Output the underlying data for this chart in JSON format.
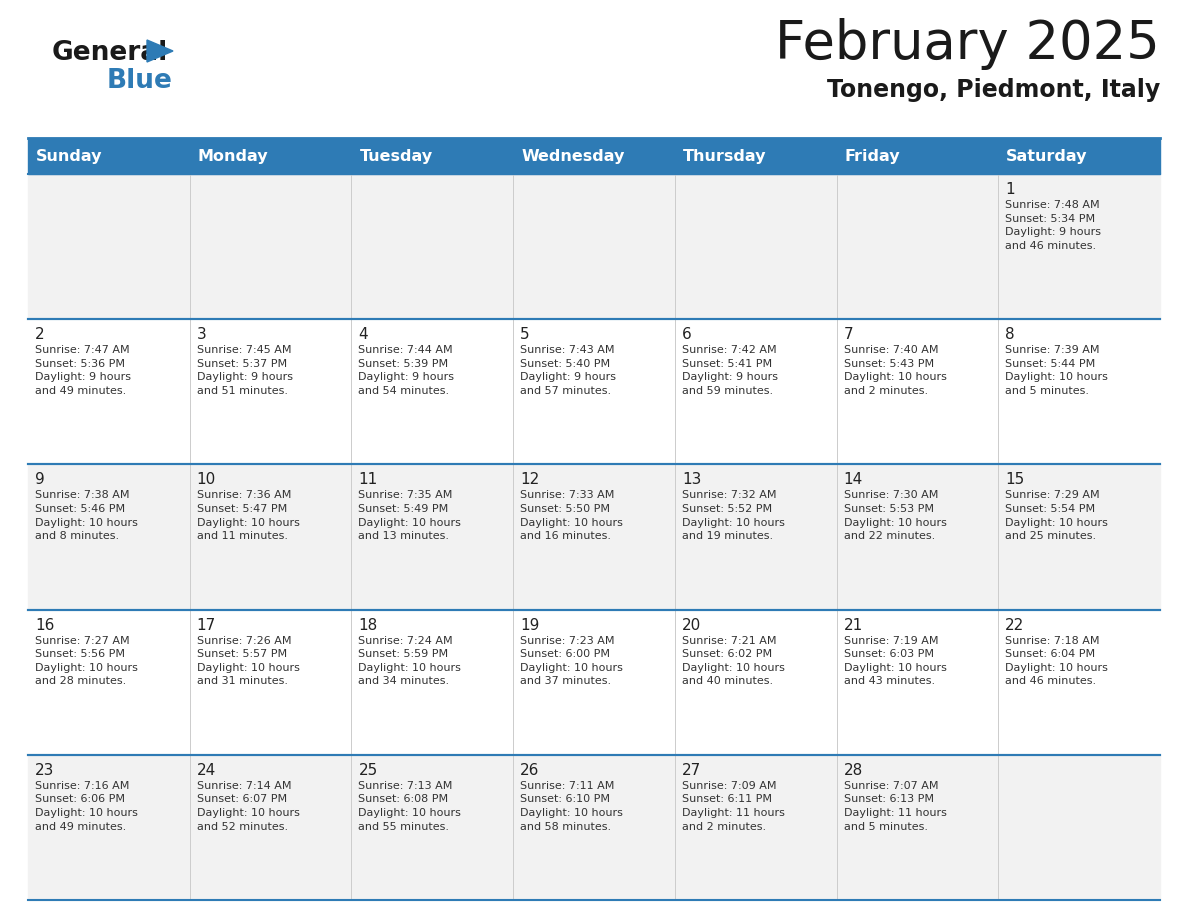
{
  "title": "February 2025",
  "subtitle": "Tonengo, Piedmont, Italy",
  "header_bg": "#2E7BB5",
  "header_text": "#FFFFFF",
  "divider_color": "#2E7BB5",
  "days_of_week": [
    "Sunday",
    "Monday",
    "Tuesday",
    "Wednesday",
    "Thursday",
    "Friday",
    "Saturday"
  ],
  "calendar_data": [
    [
      {
        "day": "",
        "info": ""
      },
      {
        "day": "",
        "info": ""
      },
      {
        "day": "",
        "info": ""
      },
      {
        "day": "",
        "info": ""
      },
      {
        "day": "",
        "info": ""
      },
      {
        "day": "",
        "info": ""
      },
      {
        "day": "1",
        "info": "Sunrise: 7:48 AM\nSunset: 5:34 PM\nDaylight: 9 hours\nand 46 minutes."
      }
    ],
    [
      {
        "day": "2",
        "info": "Sunrise: 7:47 AM\nSunset: 5:36 PM\nDaylight: 9 hours\nand 49 minutes."
      },
      {
        "day": "3",
        "info": "Sunrise: 7:45 AM\nSunset: 5:37 PM\nDaylight: 9 hours\nand 51 minutes."
      },
      {
        "day": "4",
        "info": "Sunrise: 7:44 AM\nSunset: 5:39 PM\nDaylight: 9 hours\nand 54 minutes."
      },
      {
        "day": "5",
        "info": "Sunrise: 7:43 AM\nSunset: 5:40 PM\nDaylight: 9 hours\nand 57 minutes."
      },
      {
        "day": "6",
        "info": "Sunrise: 7:42 AM\nSunset: 5:41 PM\nDaylight: 9 hours\nand 59 minutes."
      },
      {
        "day": "7",
        "info": "Sunrise: 7:40 AM\nSunset: 5:43 PM\nDaylight: 10 hours\nand 2 minutes."
      },
      {
        "day": "8",
        "info": "Sunrise: 7:39 AM\nSunset: 5:44 PM\nDaylight: 10 hours\nand 5 minutes."
      }
    ],
    [
      {
        "day": "9",
        "info": "Sunrise: 7:38 AM\nSunset: 5:46 PM\nDaylight: 10 hours\nand 8 minutes."
      },
      {
        "day": "10",
        "info": "Sunrise: 7:36 AM\nSunset: 5:47 PM\nDaylight: 10 hours\nand 11 minutes."
      },
      {
        "day": "11",
        "info": "Sunrise: 7:35 AM\nSunset: 5:49 PM\nDaylight: 10 hours\nand 13 minutes."
      },
      {
        "day": "12",
        "info": "Sunrise: 7:33 AM\nSunset: 5:50 PM\nDaylight: 10 hours\nand 16 minutes."
      },
      {
        "day": "13",
        "info": "Sunrise: 7:32 AM\nSunset: 5:52 PM\nDaylight: 10 hours\nand 19 minutes."
      },
      {
        "day": "14",
        "info": "Sunrise: 7:30 AM\nSunset: 5:53 PM\nDaylight: 10 hours\nand 22 minutes."
      },
      {
        "day": "15",
        "info": "Sunrise: 7:29 AM\nSunset: 5:54 PM\nDaylight: 10 hours\nand 25 minutes."
      }
    ],
    [
      {
        "day": "16",
        "info": "Sunrise: 7:27 AM\nSunset: 5:56 PM\nDaylight: 10 hours\nand 28 minutes."
      },
      {
        "day": "17",
        "info": "Sunrise: 7:26 AM\nSunset: 5:57 PM\nDaylight: 10 hours\nand 31 minutes."
      },
      {
        "day": "18",
        "info": "Sunrise: 7:24 AM\nSunset: 5:59 PM\nDaylight: 10 hours\nand 34 minutes."
      },
      {
        "day": "19",
        "info": "Sunrise: 7:23 AM\nSunset: 6:00 PM\nDaylight: 10 hours\nand 37 minutes."
      },
      {
        "day": "20",
        "info": "Sunrise: 7:21 AM\nSunset: 6:02 PM\nDaylight: 10 hours\nand 40 minutes."
      },
      {
        "day": "21",
        "info": "Sunrise: 7:19 AM\nSunset: 6:03 PM\nDaylight: 10 hours\nand 43 minutes."
      },
      {
        "day": "22",
        "info": "Sunrise: 7:18 AM\nSunset: 6:04 PM\nDaylight: 10 hours\nand 46 minutes."
      }
    ],
    [
      {
        "day": "23",
        "info": "Sunrise: 7:16 AM\nSunset: 6:06 PM\nDaylight: 10 hours\nand 49 minutes."
      },
      {
        "day": "24",
        "info": "Sunrise: 7:14 AM\nSunset: 6:07 PM\nDaylight: 10 hours\nand 52 minutes."
      },
      {
        "day": "25",
        "info": "Sunrise: 7:13 AM\nSunset: 6:08 PM\nDaylight: 10 hours\nand 55 minutes."
      },
      {
        "day": "26",
        "info": "Sunrise: 7:11 AM\nSunset: 6:10 PM\nDaylight: 10 hours\nand 58 minutes."
      },
      {
        "day": "27",
        "info": "Sunrise: 7:09 AM\nSunset: 6:11 PM\nDaylight: 11 hours\nand 2 minutes."
      },
      {
        "day": "28",
        "info": "Sunrise: 7:07 AM\nSunset: 6:13 PM\nDaylight: 11 hours\nand 5 minutes."
      },
      {
        "day": "",
        "info": ""
      }
    ]
  ]
}
